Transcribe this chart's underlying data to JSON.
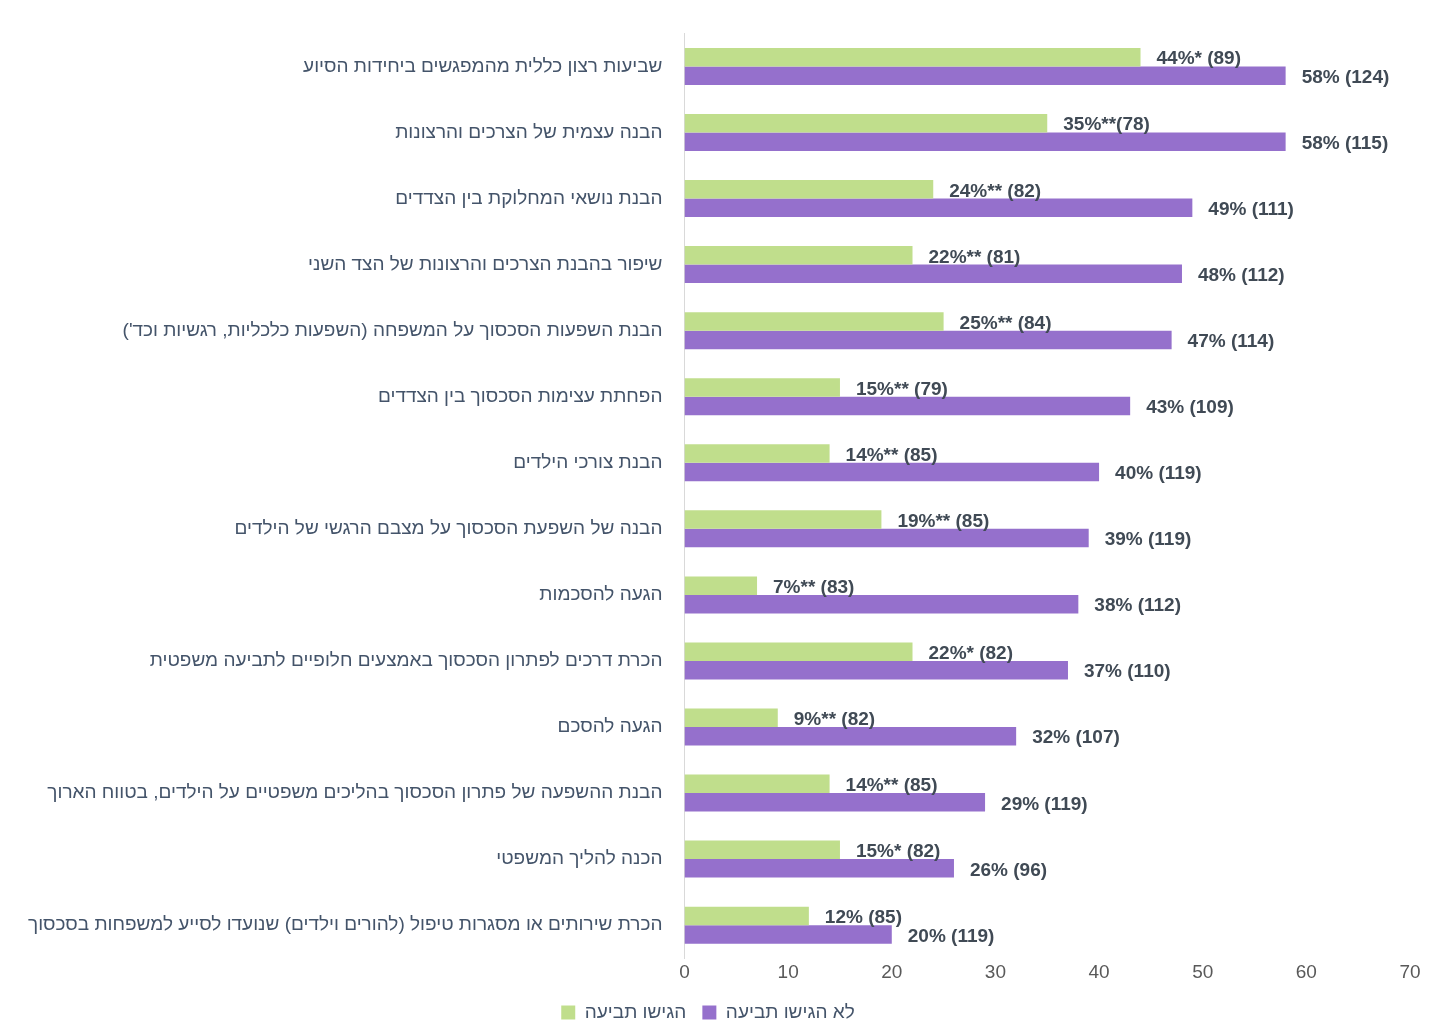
{
  "chart_data": {
    "type": "bar",
    "orientation": "horizontal",
    "categories": [
      "שביעות רצון כללית מהמפגשים ביחידות הסיוע",
      "הבנה עצמית של הצרכים והרצונות",
      "הבנת נושאי המחלוקת בין הצדדים",
      "שיפור בהבנת הצרכים והרצונות של הצד השני",
      "הבנת השפעות הסכסוך על המשפחה (השפעות כלכליות, רגשיות וכד')",
      "הפחתת עצימות הסכסוך בין הצדדים",
      "הבנת צורכי הילדים",
      "הבנה של השפעת הסכסוך על מצבם הרגשי של הילדים",
      "הגעה להסכמות",
      "הכרת דרכים לפתרון הסכסוך באמצעים חלופיים לתביעה משפטית",
      "הגעה להסכם",
      "הבנת ההשפעה של פתרון הסכסוך בהליכים משפטיים על הילדים, בטווח הארוך",
      "הכנה להליך המשפטי",
      "הכרת שירותים או מסגרות טיפול (להורים וילדים) שנועדו לסייע למשפחות בסכסוך"
    ],
    "series": [
      {
        "name": "הגישו תביעה",
        "color": "#c0de8c",
        "values": [
          44,
          35,
          24,
          22,
          25,
          15,
          14,
          19,
          7,
          22,
          9,
          14,
          15,
          12
        ],
        "value_labels": [
          "44%* (89)",
          "35%**(78)",
          "24%** (82)",
          "22%** (81)",
          "25%** (84)",
          "15%** (79)",
          "14%** (85)",
          "19%** (85)",
          "7%** (83)",
          "22%* (82)",
          "9%** (82)",
          "14%** (85)",
          "15%* (82)",
          "12% (85)"
        ]
      },
      {
        "name": "לא הגישו תביעה",
        "color": "#9570cc",
        "values": [
          58,
          58,
          49,
          48,
          47,
          43,
          40,
          39,
          38,
          37,
          32,
          29,
          26,
          20
        ],
        "value_labels": [
          "58% (124)",
          "58% (115)",
          "49% (111)",
          "48% (112)",
          "47% (114)",
          "43% (109)",
          "40% (119)",
          "39% (119)",
          "38% (112)",
          "37% (110)",
          "32% (107)",
          "29% (119)",
          "26% (96)",
          "20% (119)"
        ]
      }
    ],
    "xlim": [
      0,
      70
    ],
    "xticks": [
      0,
      10,
      20,
      30,
      40,
      50,
      60,
      70
    ],
    "grid": false,
    "legend": "bottom"
  }
}
